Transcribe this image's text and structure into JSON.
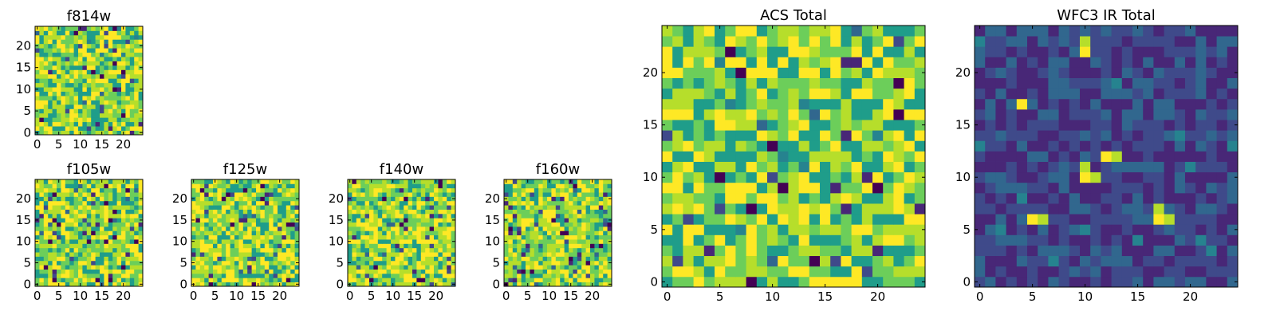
{
  "figure": {
    "panels": [
      {
        "id": "f814w",
        "title": "f814w",
        "group": "acs",
        "seed": 814
      },
      {
        "id": "f105w",
        "title": "f105w",
        "group": "ir",
        "seed": 105
      },
      {
        "id": "f125w",
        "title": "f125w",
        "group": "ir",
        "seed": 125
      },
      {
        "id": "f140w",
        "title": "f140w",
        "group": "ir",
        "seed": 140
      },
      {
        "id": "f160w",
        "title": "f160w",
        "group": "ir",
        "seed": 160
      },
      {
        "id": "acs-total",
        "title": "ACS Total",
        "group": "acs-total",
        "seed": 1
      },
      {
        "id": "wfc3-ir-total",
        "title": "WFC3 IR Total",
        "group": "ir-total",
        "seed": 2
      }
    ]
  },
  "chart_data": [
    {
      "type": "heatmap",
      "title": "f814w",
      "grid": [
        25,
        25
      ],
      "colormap": "viridis",
      "xlim": [
        -0.5,
        24.5
      ],
      "ylim": [
        -0.5,
        24.5
      ],
      "xticks": [
        "0",
        "5",
        "10",
        "15",
        "20"
      ],
      "yticks": [
        "0",
        "5",
        "10",
        "15",
        "20"
      ],
      "values_description": "noise field, mostly green-yellow"
    },
    {
      "type": "heatmap",
      "title": "f105w",
      "grid": [
        25,
        25
      ],
      "colormap": "viridis",
      "xticks": [
        "0",
        "5",
        "10",
        "15",
        "20"
      ],
      "yticks": [
        "0",
        "5",
        "10",
        "15",
        "20"
      ]
    },
    {
      "type": "heatmap",
      "title": "f125w",
      "grid": [
        25,
        25
      ],
      "colormap": "viridis",
      "xticks": [
        "0",
        "5",
        "10",
        "15",
        "20"
      ],
      "yticks": [
        "0",
        "5",
        "10",
        "15",
        "20"
      ]
    },
    {
      "type": "heatmap",
      "title": "f140w",
      "grid": [
        25,
        25
      ],
      "colormap": "viridis",
      "xticks": [
        "0",
        "5",
        "10",
        "15",
        "20"
      ],
      "yticks": [
        "0",
        "5",
        "10",
        "15",
        "20"
      ]
    },
    {
      "type": "heatmap",
      "title": "f160w",
      "grid": [
        25,
        25
      ],
      "colormap": "viridis",
      "xticks": [
        "0",
        "5",
        "10",
        "15",
        "20"
      ],
      "yticks": [
        "0",
        "5",
        "10",
        "15",
        "20"
      ]
    },
    {
      "type": "heatmap",
      "title": "ACS Total",
      "grid": [
        25,
        25
      ],
      "colormap": "viridis",
      "xticks": [
        "0",
        "5",
        "10",
        "15",
        "20"
      ],
      "yticks": [
        "0",
        "5",
        "10",
        "15",
        "20"
      ]
    },
    {
      "type": "heatmap",
      "title": "WFC3 IR Total",
      "grid": [
        25,
        25
      ],
      "colormap": "viridis",
      "xticks": [
        "0",
        "5",
        "10",
        "15",
        "20"
      ],
      "yticks": [
        "0",
        "5",
        "10",
        "15",
        "20"
      ],
      "bright_spots": [
        [
          12,
          12
        ],
        [
          4,
          17
        ],
        [
          10,
          22
        ],
        [
          5,
          6
        ],
        [
          10,
          10
        ],
        [
          17,
          6
        ]
      ]
    }
  ],
  "colors": {
    "viridis": [
      "#440154",
      "#482777",
      "#3f4a8a",
      "#31678e",
      "#26838f",
      "#1f9d8a",
      "#6cce5a",
      "#b6de2b",
      "#fee825"
    ]
  }
}
